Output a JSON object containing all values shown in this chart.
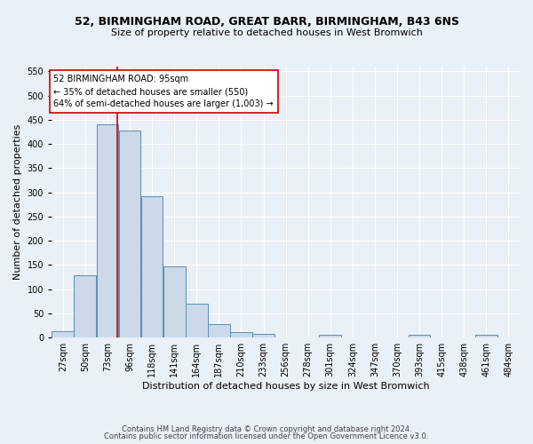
{
  "title1": "52, BIRMINGHAM ROAD, GREAT BARR, BIRMINGHAM, B43 6NS",
  "title2": "Size of property relative to detached houses in West Bromwich",
  "xlabel": "Distribution of detached houses by size in West Bromwich",
  "ylabel": "Number of detached properties",
  "bin_labels": [
    "27sqm",
    "50sqm",
    "73sqm",
    "96sqm",
    "118sqm",
    "141sqm",
    "164sqm",
    "187sqm",
    "210sqm",
    "233sqm",
    "256sqm",
    "278sqm",
    "301sqm",
    "324sqm",
    "347sqm",
    "370sqm",
    "393sqm",
    "415sqm",
    "438sqm",
    "461sqm",
    "484sqm"
  ],
  "bar_heights": [
    13,
    128,
    440,
    427,
    293,
    147,
    70,
    27,
    11,
    8,
    0,
    0,
    5,
    0,
    0,
    0,
    5,
    0,
    0,
    6,
    0
  ],
  "bar_color": "#ccd9e8",
  "bar_edge_color": "#5b8db8",
  "vline_x": 95,
  "vline_color": "#cc0000",
  "annotation_text": "52 BIRMINGHAM ROAD: 95sqm\n← 35% of detached houses are smaller (550)\n64% of semi-detached houses are larger (1,003) →",
  "annotation_box_color": "#ffffff",
  "annotation_box_edge": "#cc0000",
  "ylim": [
    0,
    560
  ],
  "yticks": [
    0,
    50,
    100,
    150,
    200,
    250,
    300,
    350,
    400,
    450,
    500,
    550
  ],
  "footer1": "Contains HM Land Registry data © Crown copyright and database right 2024.",
  "footer2": "Contains public sector information licensed under the Open Government Licence v3.0.",
  "bg_color": "#eaf0f7",
  "plot_bg_color": "#eaf0f7",
  "grid_color": "#ffffff",
  "title_fontsize": 9,
  "subtitle_fontsize": 8,
  "ylabel_fontsize": 8,
  "xlabel_fontsize": 8,
  "tick_fontsize": 7,
  "footer_fontsize": 6
}
